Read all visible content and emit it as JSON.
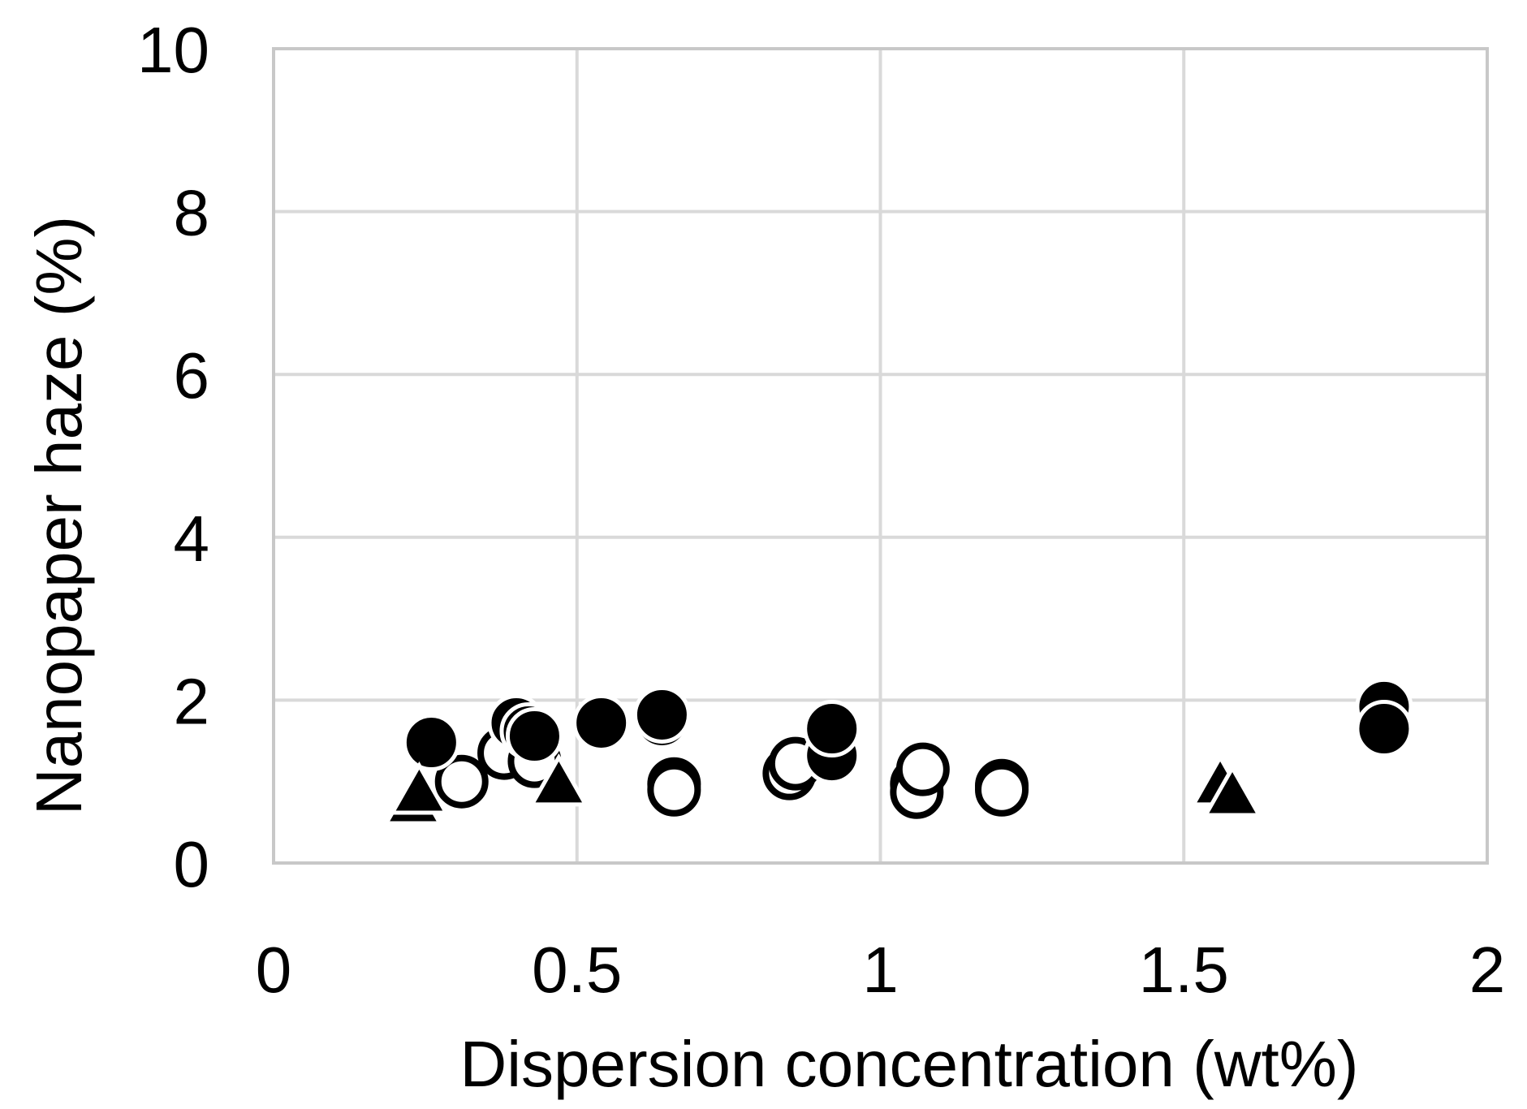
{
  "chart_data": {
    "type": "scatter",
    "xlabel": "Dispersion concentration (wt%)",
    "ylabel": "Nanopaper haze (%)",
    "xlim": [
      0,
      2
    ],
    "ylim": [
      0,
      10
    ],
    "x_ticks": [
      "0",
      "0.5",
      "1",
      "1.5",
      "2"
    ],
    "y_ticks": [
      "0",
      "2",
      "4",
      "6",
      "8",
      "10"
    ],
    "grid": true,
    "legend": "none",
    "colors": {
      "grid": "#d9d9d9",
      "border": "#c8c8c8",
      "marker": "#000000"
    },
    "series": [
      {
        "marker": "open-circle",
        "points": [
          {
            "x": 0.31,
            "y": 1.0
          },
          {
            "x": 0.38,
            "y": 1.35
          },
          {
            "x": 0.43,
            "y": 1.25
          },
          {
            "x": 0.66,
            "y": 0.97
          },
          {
            "x": 0.66,
            "y": 0.9
          },
          {
            "x": 0.85,
            "y": 1.1
          },
          {
            "x": 0.86,
            "y": 1.22
          },
          {
            "x": 1.06,
            "y": 0.97
          },
          {
            "x": 1.06,
            "y": 0.87
          },
          {
            "x": 1.07,
            "y": 1.15
          },
          {
            "x": 1.2,
            "y": 0.95
          },
          {
            "x": 1.2,
            "y": 0.9
          }
        ]
      },
      {
        "marker": "filled-circle",
        "points": [
          {
            "x": 0.26,
            "y": 1.48
          },
          {
            "x": 0.4,
            "y": 1.72
          },
          {
            "x": 0.42,
            "y": 1.62
          },
          {
            "x": 0.43,
            "y": 1.56
          },
          {
            "x": 0.54,
            "y": 1.72
          },
          {
            "x": 0.64,
            "y": 1.75
          },
          {
            "x": 0.64,
            "y": 1.82
          },
          {
            "x": 0.92,
            "y": 1.32
          },
          {
            "x": 0.92,
            "y": 1.65
          },
          {
            "x": 1.83,
            "y": 1.92
          },
          {
            "x": 1.83,
            "y": 1.65
          }
        ]
      },
      {
        "marker": "filled-triangle",
        "points": [
          {
            "x": 0.23,
            "y": 0.72
          },
          {
            "x": 0.24,
            "y": 0.85
          },
          {
            "x": 0.47,
            "y": 0.95
          },
          {
            "x": 1.56,
            "y": 0.95
          },
          {
            "x": 1.58,
            "y": 0.82
          }
        ]
      }
    ]
  }
}
